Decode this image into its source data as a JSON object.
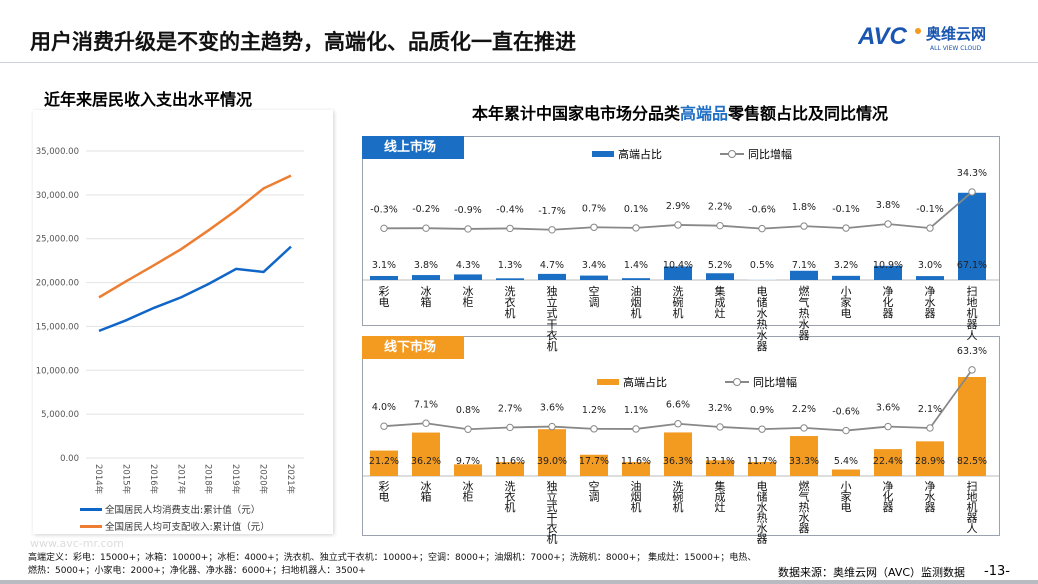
{
  "header": {
    "title": "用户消费升级是不变的主趋势，高端化、品质化一直在推进",
    "logo_text": "AVC",
    "logo_cn": "奥维云网",
    "logo_en": "ALL VIEW CLOUD"
  },
  "left_chart": {
    "subtitle": "近年来居民收入支出水平情况"
  },
  "right_title": {
    "prefix": "本年累计中国家电市场分品类",
    "highlight": "高端品",
    "suffix": "零售额占比及同比情况"
  },
  "colors": {
    "blue": "#1a6fc4",
    "orange": "#f39a21",
    "line_gray": "#888888",
    "income": "#ed7d31",
    "spend": "#0f66c8"
  },
  "chart_data": [
    {
      "type": "line",
      "title": "",
      "categories": [
        "2014年",
        "2015年",
        "2016年",
        "2017年",
        "2018年",
        "2019年",
        "2020年",
        "2021年"
      ],
      "yticks": [
        "0.00",
        "5,000.00",
        "10,000.00",
        "15,000.00",
        "20,000.00",
        "25,000.00",
        "30,000.00",
        "35,000.00"
      ],
      "ylim": [
        0,
        35000
      ],
      "grid": true,
      "legend": "bottom",
      "series": [
        {
          "name": "全国居民人均消费支出:累计值（元）",
          "values": [
            14491,
            15712,
            17111,
            18322,
            19853,
            21559,
            21210,
            24100
          ]
        },
        {
          "name": "全国居民人均可支配收入:累计值（元）",
          "values": [
            18311,
            20167,
            21966,
            23821,
            25974,
            28228,
            30733,
            32189
          ]
        }
      ]
    },
    {
      "type": "bar+line",
      "panel_label": "线上市场",
      "legend": "top",
      "categories": [
        "彩电",
        "冰箱",
        "冰柜",
        "洗衣机",
        "独立式干衣机",
        "空调",
        "油烟机",
        "洗碗机",
        "集成灶",
        "电储水热水器",
        "燃气热水器",
        "小家电",
        "净化器",
        "净水器",
        "扫地机器人"
      ],
      "series": [
        {
          "name": "高端占比",
          "values": [
            3.1,
            3.8,
            4.3,
            1.3,
            4.7,
            3.4,
            1.4,
            10.4,
            5.2,
            0.5,
            7.1,
            3.2,
            10.9,
            3.0,
            67.1
          ],
          "labels": [
            "3.1%",
            "3.8%",
            "4.3%",
            "1.3%",
            "4.7%",
            "3.4%",
            "1.4%",
            "10.4%",
            "5.2%",
            "0.5%",
            "7.1%",
            "3.2%",
            "10.9%",
            "3.0%",
            "67.1%"
          ]
        },
        {
          "name": "同比增幅",
          "values": [
            -0.3,
            -0.2,
            -0.9,
            -0.4,
            -1.7,
            0.7,
            0.1,
            2.9,
            2.2,
            -0.6,
            1.8,
            -0.1,
            3.8,
            -0.1,
            34.3
          ],
          "labels": [
            "-0.3%",
            "-0.2%",
            "-0.9%",
            "-0.4%",
            "-1.7%",
            "0.7%",
            "0.1%",
            "2.9%",
            "2.2%",
            "-0.6%",
            "1.8%",
            "-0.1%",
            "3.8%",
            "-0.1%",
            "34.3%"
          ]
        }
      ]
    },
    {
      "type": "bar+line",
      "panel_label": "线下市场",
      "legend": "top",
      "categories": [
        "彩电",
        "冰箱",
        "冰柜",
        "洗衣机",
        "独立式干衣机",
        "空调",
        "油烟机",
        "洗碗机",
        "集成灶",
        "电储水热水器",
        "燃气热水器",
        "小家电",
        "净化器",
        "净水器",
        "扫地机器人"
      ],
      "series": [
        {
          "name": "高端占比",
          "values": [
            21.2,
            36.2,
            9.7,
            11.6,
            39.0,
            17.7,
            11.6,
            36.3,
            13.1,
            11.7,
            33.3,
            5.4,
            22.4,
            28.9,
            82.5
          ],
          "labels": [
            "21.2%",
            "36.2%",
            "9.7%",
            "11.6%",
            "39.0%",
            "17.7%",
            "11.6%",
            "36.3%",
            "13.1%",
            "11.7%",
            "33.3%",
            "5.4%",
            "22.4%",
            "28.9%",
            "82.5%"
          ]
        },
        {
          "name": "同比增幅",
          "values": [
            4.0,
            7.1,
            0.8,
            2.7,
            3.6,
            1.2,
            1.1,
            6.6,
            3.2,
            0.9,
            2.2,
            -0.6,
            3.6,
            2.1,
            63.3
          ],
          "labels": [
            "4.0%",
            "7.1%",
            "0.8%",
            "2.7%",
            "3.6%",
            "1.2%",
            "1.1%",
            "6.6%",
            "3.2%",
            "0.9%",
            "2.2%",
            "-0.6%",
            "3.6%",
            "2.1%",
            "63.3%"
          ]
        }
      ]
    }
  ],
  "footer": {
    "watermark": "www.avc-mr.com",
    "definition_line1": "高端定义：彩电：15000+；冰箱：10000+；冰柜：4000+；洗衣机、独立式干衣机：10000+；空调：8000+；油烟机：7000+；洗碗机：8000+；    集成灶：15000+；电热、",
    "definition_line2": "燃热：5000+；小家电：2000+；净化器、净水器：6000+；扫地机器人：3500+",
    "source": "数据来源：奥维云网（AVC）监测数据",
    "page": "-13-"
  }
}
